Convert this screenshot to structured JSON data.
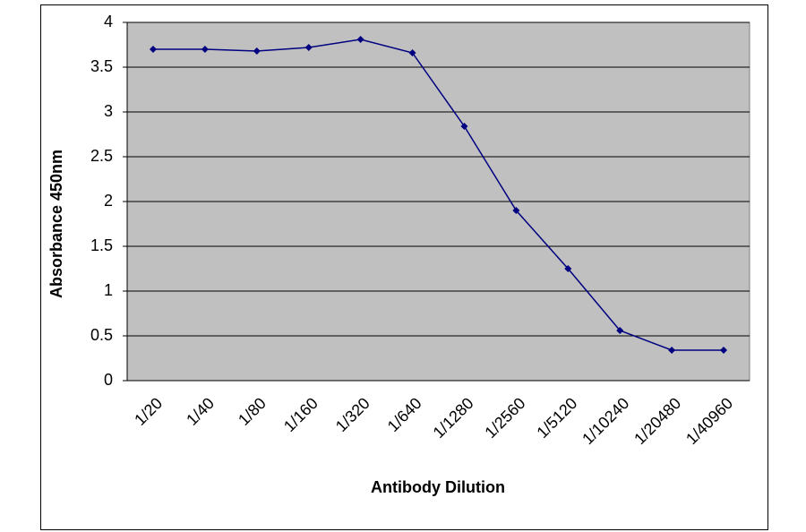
{
  "chart_data": {
    "type": "line",
    "x_label": "Antibody Dilution",
    "y_label": "Absorbance 450nm",
    "categories": [
      "1/20",
      "1/40",
      "1/80",
      "1/160",
      "1/320",
      "1/640",
      "1/1280",
      "1/2560",
      "1/5120",
      "1/10240",
      "1/20480",
      "1/40960"
    ],
    "series": [
      {
        "color": "#000080",
        "values": [
          3.7,
          3.7,
          3.68,
          3.72,
          3.81,
          3.66,
          2.84,
          1.9,
          1.25,
          0.56,
          0.34,
          0.34
        ]
      }
    ],
    "ylim": [
      0,
      4
    ],
    "yticks": [
      0,
      0.5,
      1,
      1.5,
      2,
      2.5,
      3,
      3.5,
      4
    ],
    "grid": true,
    "plot_background": "#c0c0c0"
  }
}
